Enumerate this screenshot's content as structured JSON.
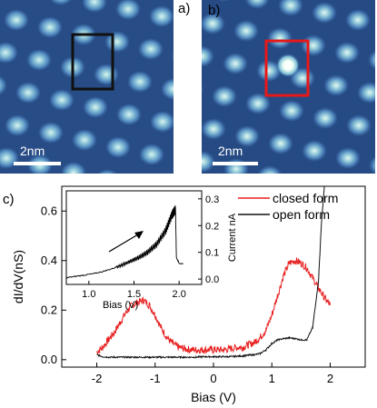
{
  "panels": {
    "a": {
      "label": "a)",
      "scale_text": "2nm"
    },
    "b": {
      "label": "b)",
      "scale_text": "2nm"
    },
    "c": {
      "label": "c)"
    }
  },
  "colors": {
    "closed": "#e82020",
    "open": "#111111",
    "box_a": "#111111",
    "box_b": "#e81818"
  },
  "chart_data": [
    {
      "type": "line",
      "xlabel": "Bias (V)",
      "ylabel": "dI/dV(nS)",
      "xlim": [
        -2.6,
        2.6
      ],
      "ylim": [
        -0.03,
        0.7
      ],
      "xticks": [
        -2,
        -1,
        0,
        1,
        2
      ],
      "yticks": [
        0.0,
        0.2,
        0.4,
        0.6
      ],
      "ytick_labels": [
        "0.0",
        "0.2",
        "0.4",
        "0.6"
      ],
      "legend_position": "top-right",
      "series": [
        {
          "name": "closed form",
          "x": [
            -2.0,
            -1.9,
            -1.8,
            -1.7,
            -1.6,
            -1.5,
            -1.4,
            -1.3,
            -1.2,
            -1.1,
            -1.0,
            -0.9,
            -0.8,
            -0.7,
            -0.6,
            -0.5,
            -0.4,
            -0.3,
            -0.2,
            -0.1,
            0.0,
            0.1,
            0.2,
            0.3,
            0.4,
            0.5,
            0.6,
            0.7,
            0.8,
            0.9,
            1.0,
            1.1,
            1.2,
            1.3,
            1.4,
            1.5,
            1.6,
            1.7,
            1.8,
            1.9,
            2.0
          ],
          "values": [
            0.03,
            0.05,
            0.08,
            0.11,
            0.15,
            0.19,
            0.22,
            0.23,
            0.24,
            0.22,
            0.18,
            0.13,
            0.09,
            0.065,
            0.05,
            0.045,
            0.04,
            0.04,
            0.04,
            0.04,
            0.04,
            0.04,
            0.04,
            0.045,
            0.05,
            0.05,
            0.06,
            0.07,
            0.09,
            0.12,
            0.18,
            0.26,
            0.34,
            0.39,
            0.4,
            0.39,
            0.37,
            0.33,
            0.29,
            0.25,
            0.22
          ]
        },
        {
          "name": "open form",
          "x": [
            -2.0,
            -1.9,
            -1.8,
            -1.7,
            -1.6,
            -1.5,
            -1.4,
            -1.3,
            -1.2,
            -1.1,
            -1.0,
            -0.9,
            -0.8,
            -0.7,
            -0.6,
            -0.5,
            -0.4,
            -0.3,
            -0.2,
            -0.1,
            0.0,
            0.1,
            0.2,
            0.3,
            0.4,
            0.5,
            0.6,
            0.7,
            0.8,
            0.9,
            1.0,
            1.1,
            1.2,
            1.3,
            1.4,
            1.5,
            1.6,
            1.7,
            1.8,
            1.85,
            1.9
          ],
          "values": [
            0.02,
            0.012,
            0.01,
            0.01,
            0.01,
            0.01,
            0.01,
            0.01,
            0.01,
            0.01,
            0.01,
            0.01,
            0.01,
            0.01,
            0.01,
            0.01,
            0.01,
            0.01,
            0.012,
            0.012,
            0.012,
            0.012,
            0.012,
            0.012,
            0.014,
            0.015,
            0.018,
            0.02,
            0.025,
            0.04,
            0.065,
            0.08,
            0.085,
            0.088,
            0.085,
            0.08,
            0.08,
            0.13,
            0.32,
            0.55,
            0.7
          ]
        }
      ]
    },
    {
      "type": "line",
      "xlabel": "Bias (V)",
      "ylabel": "Current nA",
      "xlim": [
        0.75,
        2.25
      ],
      "ylim": [
        -0.02,
        0.33
      ],
      "xticks": [
        1.0,
        1.5,
        2.0
      ],
      "xtick_labels": [
        "1.0",
        "1.5",
        "2.0"
      ],
      "yticks": [
        0.0,
        0.1,
        0.2,
        0.3
      ],
      "ytick_labels": [
        "0.0",
        "0.1",
        "0.2",
        "0.3"
      ],
      "series": [
        {
          "x": [
            0.75,
            0.85,
            0.95,
            1.05,
            1.15,
            1.25,
            1.35,
            1.45,
            1.55,
            1.65,
            1.75,
            1.85,
            1.92,
            1.96,
            1.97,
            2.0,
            2.05
          ],
          "values": [
            0.005,
            0.01,
            0.015,
            0.02,
            0.028,
            0.038,
            0.05,
            0.065,
            0.08,
            0.1,
            0.13,
            0.18,
            0.24,
            0.26,
            0.08,
            0.06,
            0.055
          ]
        }
      ]
    }
  ]
}
